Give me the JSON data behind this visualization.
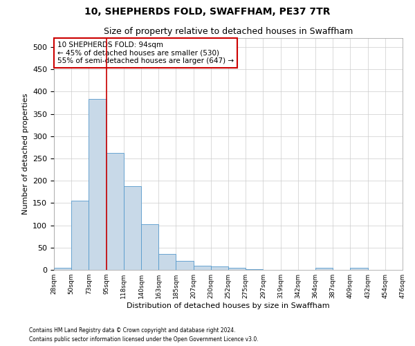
{
  "title": "10, SHEPHERDS FOLD, SWAFFHAM, PE37 7TR",
  "subtitle": "Size of property relative to detached houses in Swaffham",
  "xlabel": "Distribution of detached houses by size in Swaffham",
  "ylabel": "Number of detached properties",
  "bin_labels": [
    "28sqm",
    "50sqm",
    "73sqm",
    "95sqm",
    "118sqm",
    "140sqm",
    "163sqm",
    "185sqm",
    "207sqm",
    "230sqm",
    "252sqm",
    "275sqm",
    "297sqm",
    "319sqm",
    "342sqm",
    "364sqm",
    "387sqm",
    "409sqm",
    "432sqm",
    "454sqm",
    "476sqm"
  ],
  "bar_values": [
    5,
    155,
    383,
    263,
    188,
    102,
    35,
    20,
    10,
    8,
    5,
    2,
    0,
    0,
    0,
    5,
    0,
    5,
    0,
    0
  ],
  "bar_color": "#c8d9e8",
  "bar_edge_color": "#5599cc",
  "grid_color": "#cccccc",
  "annotation_text": "10 SHEPHERDS FOLD: 94sqm\n← 45% of detached houses are smaller (530)\n55% of semi-detached houses are larger (647) →",
  "annotation_box_color": "#cc0000",
  "property_line_color": "#cc0000",
  "property_line_x": 3,
  "ylim": [
    0,
    520
  ],
  "yticks": [
    0,
    50,
    100,
    150,
    200,
    250,
    300,
    350,
    400,
    450,
    500
  ],
  "footnote1": "Contains HM Land Registry data © Crown copyright and database right 2024.",
  "footnote2": "Contains public sector information licensed under the Open Government Licence v3.0.",
  "background_color": "#ffffff",
  "title_fontsize": 10,
  "subtitle_fontsize": 9,
  "xlabel_fontsize": 8,
  "ylabel_fontsize": 8
}
